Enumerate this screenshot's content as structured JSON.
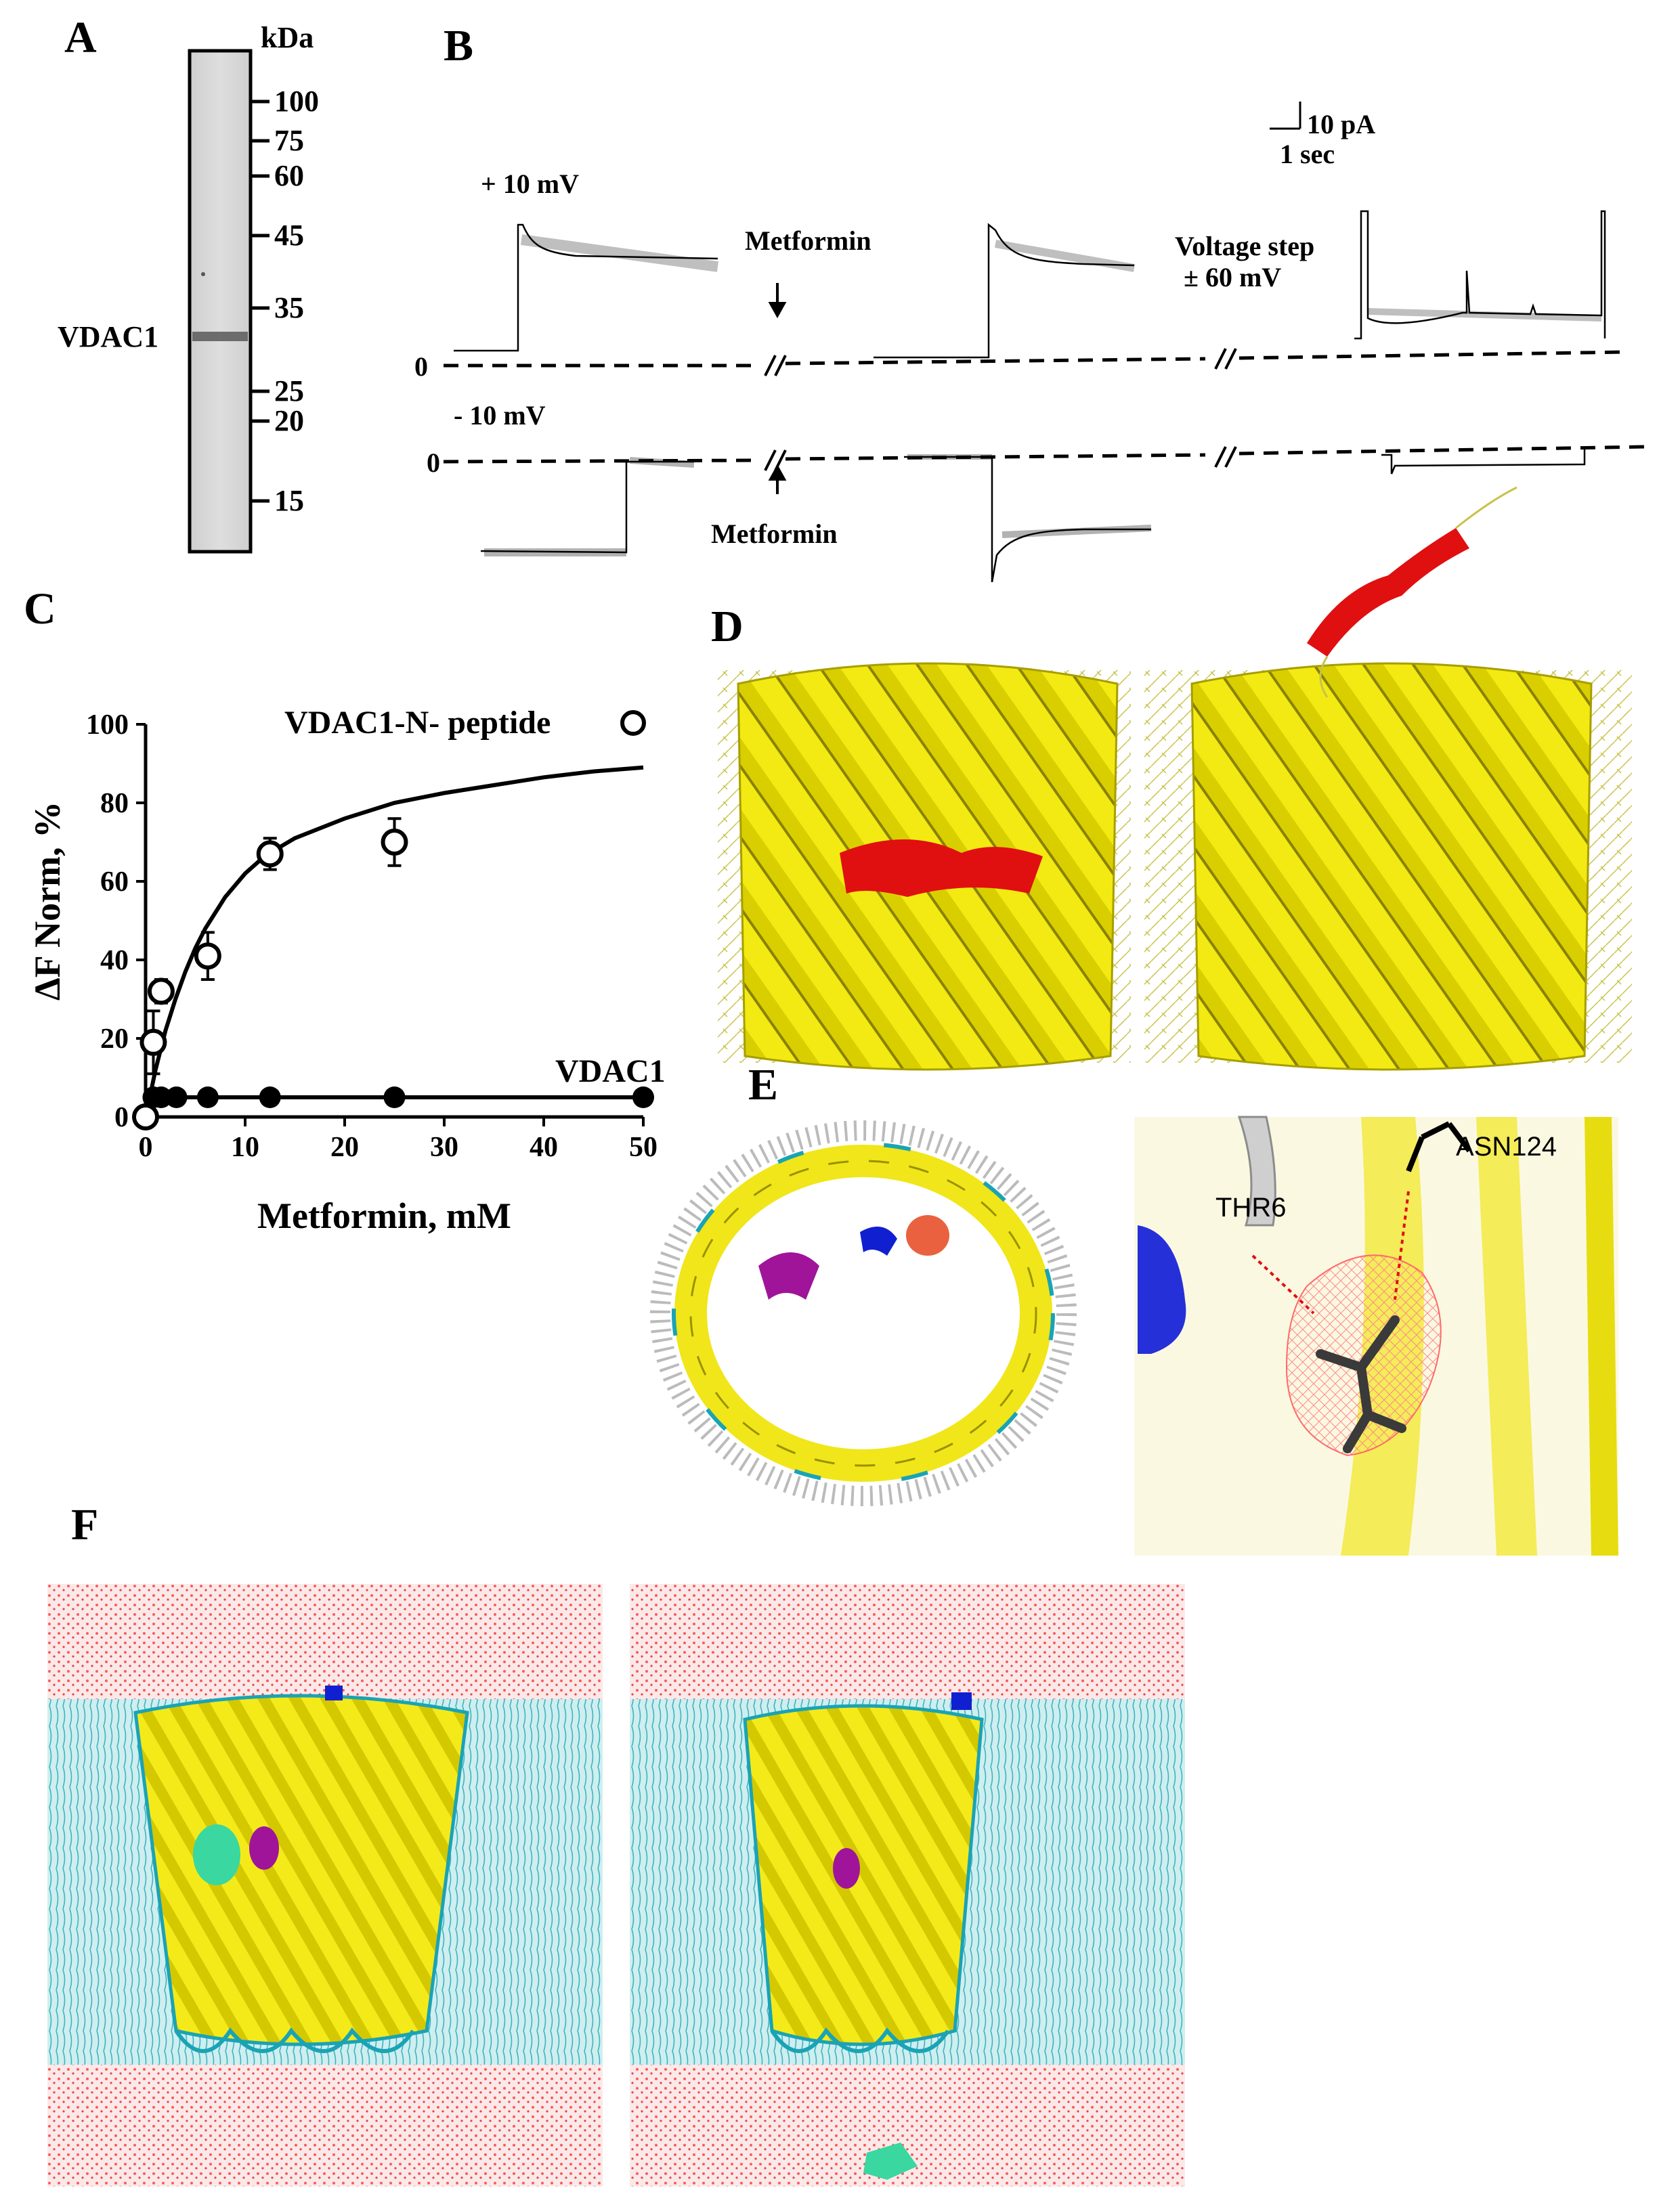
{
  "panels": {
    "A": "A",
    "B": "B",
    "C": "C",
    "D": "D",
    "E": "E",
    "F": "F"
  },
  "panel_a": {
    "unit_label": "kDa",
    "band_label": "VDAC1",
    "markers": [
      "100",
      "75",
      "60",
      "45",
      "35",
      "25",
      "20",
      "15"
    ]
  },
  "panel_b": {
    "scale_current": "10 pA",
    "scale_time": "1 sec",
    "top_voltage": "+ 10 mV",
    "bottom_voltage": "- 10 mV",
    "zero": "0",
    "metformin_top": "Metformin",
    "metformin_bottom": "Metformin",
    "voltage_step_line1": "Voltage step",
    "voltage_step_line2": "± 60 mV"
  },
  "panel_e": {
    "residue_1": "THR6",
    "residue_2": "ASN124"
  },
  "chart_data": {
    "type": "scatter",
    "title": "",
    "xlabel": "Metformin, mM",
    "ylabel": "ΔF Norm, %",
    "xlim": [
      0,
      50
    ],
    "ylim": [
      0,
      100
    ],
    "xticks": [
      "0",
      "10",
      "20",
      "30",
      "40",
      "50"
    ],
    "yticks": [
      "0",
      "20",
      "40",
      "60",
      "80",
      "100"
    ],
    "grid": false,
    "legend": "inline labels",
    "series": [
      {
        "name": "VDAC1-N- peptide",
        "marker": "open-circle",
        "x": [
          0,
          0.78,
          1.56,
          6.25,
          12.5,
          25
        ],
        "y": [
          0,
          19,
          32,
          41,
          67,
          70
        ],
        "err": [
          0,
          8,
          3,
          6,
          4,
          6
        ],
        "fit": "hyperbolic",
        "fit_curve_x": [
          0,
          1,
          2,
          3,
          4,
          5,
          6,
          8,
          10,
          12,
          15,
          20,
          25,
          30,
          35,
          40,
          45,
          50
        ],
        "fit_curve_y": [
          0,
          12,
          22,
          30,
          37,
          43,
          48,
          56,
          62,
          66.5,
          71,
          76,
          80,
          82.5,
          84.5,
          86.5,
          88,
          89
        ]
      },
      {
        "name": "VDAC1",
        "marker": "filled-circle",
        "x": [
          0.78,
          1.56,
          3.1,
          6.25,
          12.5,
          25,
          50
        ],
        "y": [
          5,
          5,
          5,
          5,
          5,
          5,
          5
        ],
        "fit": "flat"
      }
    ]
  }
}
